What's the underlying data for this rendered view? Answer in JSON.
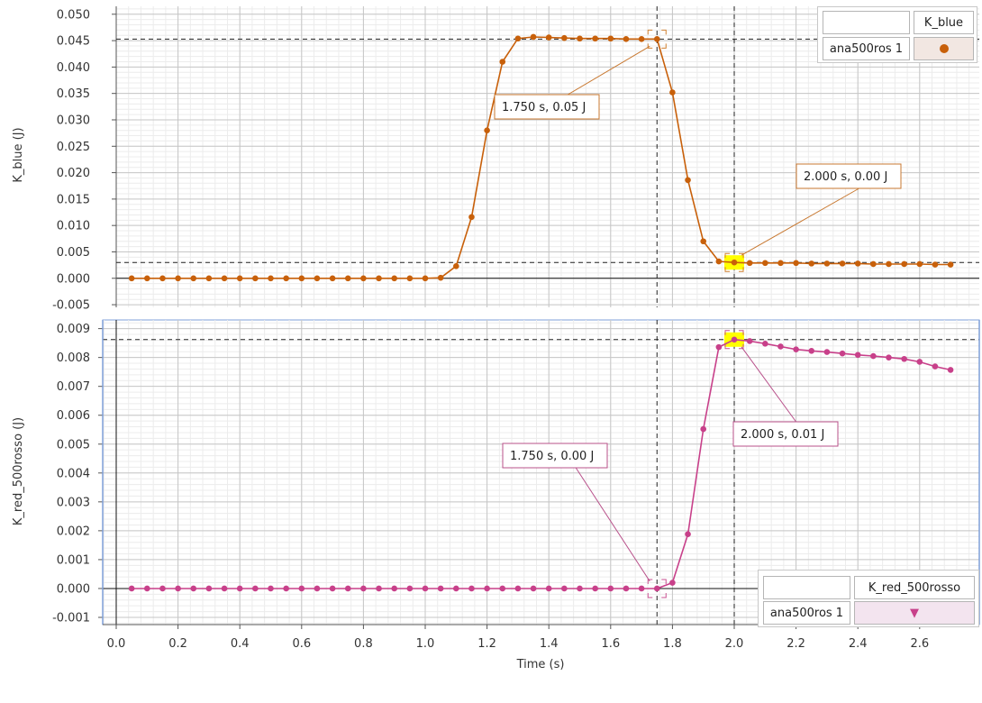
{
  "chart_data": [
    {
      "type": "line",
      "ylabel": "K_blue (J)",
      "xlim": [
        -0.05,
        2.78
      ],
      "ylim": [
        -0.0055,
        0.0515
      ],
      "x_ticks": [
        "0.0",
        "0.2",
        "0.4",
        "0.6",
        "0.8",
        "1.0",
        "1.2",
        "1.4",
        "1.6",
        "1.8",
        "2.0",
        "2.2",
        "2.4",
        "2.6"
      ],
      "y_ticks": [
        "0.050",
        "0.045",
        "0.040",
        "0.035",
        "0.030",
        "0.025",
        "0.020",
        "0.015",
        "0.010",
        "0.005",
        "0.000",
        "-0.005"
      ],
      "grid": true,
      "color": "#c8600a",
      "series": [
        {
          "name": "K_blue",
          "x": [
            0.05,
            0.1,
            0.15,
            0.2,
            0.25,
            0.3,
            0.35,
            0.4,
            0.45,
            0.5,
            0.55,
            0.6,
            0.65,
            0.7,
            0.75,
            0.8,
            0.85,
            0.9,
            0.95,
            1.0,
            1.05,
            1.1,
            1.15,
            1.2,
            1.25,
            1.3,
            1.35,
            1.4,
            1.45,
            1.5,
            1.55,
            1.6,
            1.65,
            1.7,
            1.75,
            1.8,
            1.85,
            1.9,
            1.95,
            2.0,
            2.05,
            2.1,
            2.15,
            2.2,
            2.25,
            2.3,
            2.35,
            2.4,
            2.45,
            2.5,
            2.55,
            2.6,
            2.65,
            2.7
          ],
          "y": [
            0,
            0,
            0,
            0,
            0,
            0,
            0,
            0,
            0,
            0,
            0,
            0,
            0,
            0,
            0,
            0,
            0,
            0,
            0,
            0,
            0.0001,
            0.0023,
            0.0116,
            0.028,
            0.041,
            0.0454,
            0.0457,
            0.0456,
            0.0455,
            0.0454,
            0.0454,
            0.0454,
            0.0453,
            0.0453,
            0.0453,
            0.0352,
            0.0186,
            0.007,
            0.0032,
            0.003,
            0.0029,
            0.0029,
            0.0029,
            0.0029,
            0.0028,
            0.0028,
            0.0028,
            0.0028,
            0.0027,
            0.0027,
            0.0027,
            0.0027,
            0.0026,
            0.0026
          ]
        }
      ],
      "crosshair": {
        "x": [
          1.75,
          2.0
        ],
        "y": 0.0453
      },
      "selected": {
        "x": 2.0,
        "y": 0.003
      },
      "annotations": [
        {
          "text": "1.750 s, 0.05 J",
          "x": 1.75,
          "y": 0.0453
        },
        {
          "text": "2.000 s, 0.00 J",
          "x": 2.0,
          "y": 0.003
        }
      ],
      "legend": {
        "run": "ana500ros 1",
        "column": "K_blue"
      }
    },
    {
      "type": "line",
      "xlabel": "Time (s)",
      "ylabel": "K_red_500rosso (J)",
      "xlim": [
        -0.05,
        2.78
      ],
      "ylim": [
        -0.00125,
        0.0093
      ],
      "x_ticks": [
        "0.0",
        "0.2",
        "0.4",
        "0.6",
        "0.8",
        "1.0",
        "1.2",
        "1.4",
        "1.6",
        "1.8",
        "2.0",
        "2.2",
        "2.4",
        "2.6"
      ],
      "y_ticks": [
        "0.009",
        "0.008",
        "0.007",
        "0.006",
        "0.005",
        "0.004",
        "0.003",
        "0.002",
        "0.001",
        "0.000",
        "-0.001"
      ],
      "grid": true,
      "color": "#c8408a",
      "series": [
        {
          "name": "K_red_500rosso",
          "x": [
            0.05,
            0.1,
            0.15,
            0.2,
            0.25,
            0.3,
            0.35,
            0.4,
            0.45,
            0.5,
            0.55,
            0.6,
            0.65,
            0.7,
            0.75,
            0.8,
            0.85,
            0.9,
            0.95,
            1.0,
            1.05,
            1.1,
            1.15,
            1.2,
            1.25,
            1.3,
            1.35,
            1.4,
            1.45,
            1.5,
            1.55,
            1.6,
            1.65,
            1.7,
            1.75,
            1.8,
            1.85,
            1.9,
            1.95,
            2.0,
            2.05,
            2.1,
            2.15,
            2.2,
            2.25,
            2.3,
            2.35,
            2.4,
            2.45,
            2.5,
            2.55,
            2.6,
            2.65,
            2.7
          ],
          "y": [
            0,
            0,
            0,
            0,
            0,
            0,
            0,
            0,
            0,
            0,
            0,
            0,
            0,
            0,
            0,
            0,
            0,
            0,
            0,
            0,
            0,
            0,
            0,
            0,
            0,
            0,
            0,
            0,
            0,
            0,
            0,
            0,
            0,
            0,
            0,
            0.0002,
            0.00188,
            0.00552,
            0.00836,
            0.00862,
            0.00857,
            0.00848,
            0.00838,
            0.00828,
            0.00823,
            0.00819,
            0.00814,
            0.00809,
            0.00805,
            0.008,
            0.00795,
            0.00785,
            0.00769,
            0.00757
          ]
        }
      ],
      "crosshair": {
        "x": [
          1.75,
          2.0
        ],
        "y": 0.00862
      },
      "selected": {
        "x": 2.0,
        "y": 0.00862
      },
      "annotations": [
        {
          "text": "1.750 s, 0.00 J",
          "x": 1.75,
          "y": 0
        },
        {
          "text": "2.000 s, 0.01 J",
          "x": 2.0,
          "y": 0.00862
        }
      ],
      "legend": {
        "run": "ana500ros 1",
        "column": "K_red_500rosso"
      }
    }
  ]
}
